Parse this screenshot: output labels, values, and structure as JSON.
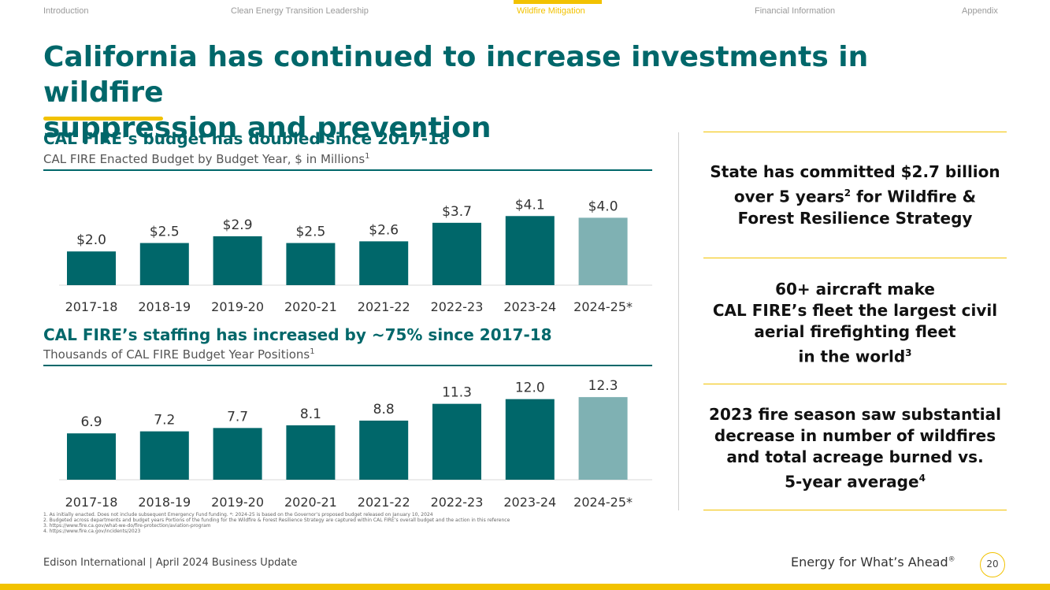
{
  "nav": {
    "items": [
      {
        "label": "Introduction",
        "active": false
      },
      {
        "label": "Clean Energy Transition Leadership",
        "active": false
      },
      {
        "label": "Wildfire Mitigation",
        "active": true
      },
      {
        "label": "Financial Information",
        "active": false
      },
      {
        "label": "Appendix",
        "active": false
      }
    ]
  },
  "slide": {
    "title_line1": "California has continued to increase investments in wildfire",
    "title_line2": "suppression and prevention"
  },
  "budget_chart": {
    "title": "CAL FIRE’s budget has doubled since 2017-18",
    "subtitle": "CAL FIRE Enacted Budget by Budget Year, $ in Millions",
    "subtitle_note": "1"
  },
  "staff_chart": {
    "title": "CAL FIRE’s staffing has increased by ~75% since 2017-18",
    "subtitle": "Thousands of CAL FIRE Budget Year Positions",
    "subtitle_note": "1"
  },
  "chart_data": [
    {
      "type": "bar",
      "title": "CAL FIRE’s budget has doubled since 2017-18",
      "ylabel": "$ in Millions",
      "categories": [
        "2017-18",
        "2018-19",
        "2019-20",
        "2020-21",
        "2021-22",
        "2022-23",
        "2023-24",
        "2024-25*"
      ],
      "values": [
        2.0,
        2.5,
        2.9,
        2.5,
        2.6,
        3.7,
        4.1,
        4.0
      ],
      "labels": [
        "$2.0",
        "$2.5",
        "$2.9",
        "$2.5",
        "$2.6",
        "$3.7",
        "$4.1",
        "$4.0"
      ],
      "ylim": [
        0,
        4.3
      ],
      "colors": [
        "#00676a",
        "#00676a",
        "#00676a",
        "#00676a",
        "#00676a",
        "#00676a",
        "#00676a",
        "#7fb1b3"
      ]
    },
    {
      "type": "bar",
      "title": "CAL FIRE’s staffing has increased by ~75% since 2017-18",
      "ylabel": "Thousands of Positions",
      "categories": [
        "2017-18",
        "2018-19",
        "2019-20",
        "2020-21",
        "2021-22",
        "2022-23",
        "2023-24",
        "2024-25*"
      ],
      "values": [
        6.9,
        7.2,
        7.7,
        8.1,
        8.8,
        11.3,
        12.0,
        12.3
      ],
      "labels": [
        "6.9",
        "7.2",
        "7.7",
        "8.1",
        "8.8",
        "11.3",
        "12.0",
        "12.3"
      ],
      "ylim": [
        0,
        12.9
      ],
      "colors": [
        "#00676a",
        "#00676a",
        "#00676a",
        "#00676a",
        "#00676a",
        "#00676a",
        "#00676a",
        "#7fb1b3"
      ]
    }
  ],
  "side": {
    "block1": {
      "line1": "State has committed $2.7 billion",
      "line2a": "over 5 years",
      "line2_sup": "2",
      "line2b": " for Wildfire &",
      "line3": "Forest Resilience Strategy"
    },
    "block2": {
      "line1": "60+ aircraft make",
      "line2": "CAL FIRE’s fleet the largest civil",
      "line3": "aerial firefighting fleet",
      "line4a": "in the world",
      "line4_sup": "3"
    },
    "block3": {
      "line1": "2023 fire season saw substantial",
      "line2": "decrease in number of wildfires",
      "line3": "and total acreage burned vs.",
      "line4a": "5-year average",
      "line4_sup": "4"
    }
  },
  "footnotes": [
    "1.  As initially enacted. Does not include subsequent Emergency Fund funding. *: 2024-25 is based on the Governor’s proposed budget released on January 10, 2024",
    "2.  Budgeted across departments and budget years Portions of the funding for the Wildfire & Forest Resilience Strategy are captured within CAL FIRE’s overall budget and the action in this reference",
    "3.  https://www.fire.ca.gov/what-we-do/fire-protection/aviation-program",
    "4.  https://www.fire.ca.gov/incidents/2023"
  ],
  "footer": {
    "left": "Edison International | April 2024 Business Update",
    "right": "Energy for What’s Ahead",
    "right_mark": "®",
    "page": "20"
  }
}
